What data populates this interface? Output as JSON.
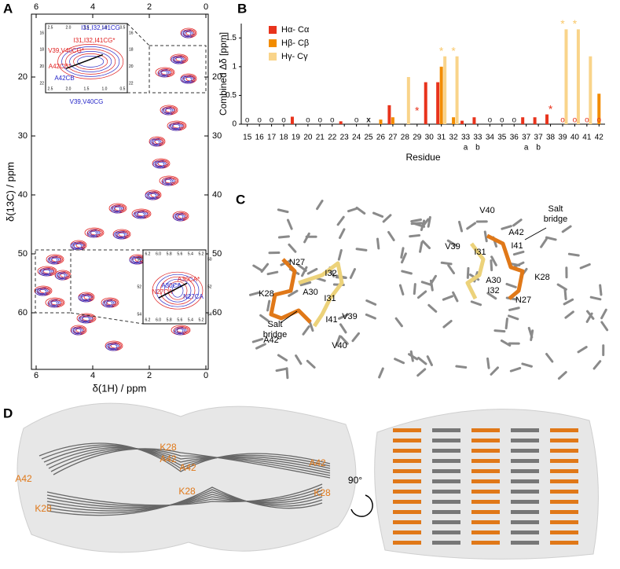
{
  "panels": {
    "A": {
      "letter": "A",
      "x_label": "δ(1H) / ppm",
      "y_label": "δ(13C) / ppm",
      "xticks": [
        6,
        4,
        2,
        0
      ],
      "yticks": [
        20,
        30,
        40,
        50,
        60
      ],
      "inset_top": {
        "xticks": [
          "2.5",
          "2.0",
          "1.5",
          "1.0",
          "0.5"
        ],
        "yticks": [
          "16",
          "18",
          "20",
          "22"
        ],
        "labels": [
          {
            "text": "I31,I32,I41CG",
            "color": "#2323c8"
          },
          {
            "text": "I31,I32,I41CG*",
            "color": "#e02020"
          },
          {
            "text": "V39,V40CG*",
            "color": "#e02020"
          },
          {
            "text": "A42CB*",
            "color": "#e02020"
          },
          {
            "text": "A42CB",
            "color": "#2323c8"
          },
          {
            "text": "V39,V40CG",
            "color": "#2323c8"
          }
        ]
      },
      "inset_bottom": {
        "xticks": [
          "6.2",
          "6.0",
          "5.8",
          "5.6",
          "5.4",
          "5.2"
        ],
        "yticks": [
          "50",
          "52",
          "54"
        ],
        "labels": [
          {
            "text": "A30CA*",
            "color": "#e02020"
          },
          {
            "text": "A30CA",
            "color": "#2323c8"
          },
          {
            "text": "N27CA*",
            "color": "#e02020"
          },
          {
            "text": "N27CA",
            "color": "#2323c8"
          }
        ]
      }
    },
    "B": {
      "letter": "B",
      "chart_data": {
        "type": "bar",
        "y_label": "Combined Δδ [ppm]",
        "x_label": "Residue",
        "categories": [
          "15",
          "16",
          "17",
          "18",
          "19",
          "20",
          "21",
          "22",
          "23",
          "24",
          "25",
          "26",
          "27",
          "28",
          "29",
          "30",
          "31",
          "32",
          "33",
          "33",
          "34",
          "35",
          "36",
          "37",
          "37",
          "38",
          "39",
          "40",
          "41",
          "42"
        ],
        "sublabels": [
          null,
          null,
          null,
          null,
          null,
          null,
          null,
          null,
          null,
          null,
          null,
          null,
          null,
          null,
          null,
          null,
          null,
          null,
          "a",
          "b",
          null,
          null,
          null,
          "a",
          "b",
          null,
          null,
          null,
          null,
          null
        ],
        "ylim": [
          0,
          1.75
        ],
        "yticks": [
          0,
          0.5,
          1,
          1.5
        ],
        "legend": "top-left",
        "series": [
          {
            "name": "Hα- Cα",
            "color": "#e8331c",
            "values": [
              null,
              null,
              null,
              null,
              0.13,
              null,
              null,
              null,
              0.05,
              null,
              null,
              null,
              0.33,
              null,
              null,
              0.73,
              0.73,
              null,
              0.06,
              0.12,
              null,
              null,
              null,
              0.12,
              0.12,
              0.17,
              null,
              null,
              null,
              null
            ]
          },
          {
            "name": "Hβ- Cβ",
            "color": "#f28c00",
            "values": [
              null,
              null,
              null,
              null,
              null,
              null,
              null,
              null,
              null,
              null,
              null,
              0.08,
              0.12,
              null,
              null,
              null,
              1.0,
              0.12,
              null,
              null,
              null,
              null,
              null,
              null,
              null,
              null,
              null,
              null,
              null,
              0.53
            ]
          },
          {
            "name": "Hγ- Cγ",
            "color": "#f9d48a",
            "values": [
              null,
              null,
              null,
              null,
              null,
              null,
              null,
              null,
              null,
              null,
              null,
              null,
              null,
              0.82,
              null,
              null,
              1.18,
              1.18,
              null,
              null,
              null,
              null,
              null,
              null,
              null,
              null,
              1.65,
              1.65,
              1.18,
              null
            ]
          }
        ],
        "annotations": [
          {
            "index": 0,
            "symbol": "o",
            "color": "#222222"
          },
          {
            "index": 1,
            "symbol": "o",
            "color": "#222222"
          },
          {
            "index": 2,
            "symbol": "o",
            "color": "#222222"
          },
          {
            "index": 3,
            "symbol": "o",
            "color": "#222222"
          },
          {
            "index": 5,
            "symbol": "o",
            "color": "#222222"
          },
          {
            "index": 6,
            "symbol": "o",
            "color": "#222222"
          },
          {
            "index": 7,
            "symbol": "o",
            "color": "#222222"
          },
          {
            "index": 9,
            "symbol": "o",
            "color": "#222222"
          },
          {
            "index": 10,
            "symbol": "x",
            "color": "#222222"
          },
          {
            "index": 20,
            "symbol": "o",
            "color": "#222222"
          },
          {
            "index": 21,
            "symbol": "o",
            "color": "#222222"
          },
          {
            "index": 22,
            "symbol": "o",
            "color": "#222222"
          },
          {
            "index": 26,
            "symbol": "o",
            "color": "#e8331c"
          },
          {
            "index": 27,
            "symbol": "o",
            "color": "#e8331c"
          },
          {
            "index": 28,
            "symbol": "o",
            "color": "#e8331c"
          },
          {
            "index": 29,
            "symbol": "o",
            "color": "#e8331c"
          },
          {
            "index": 14,
            "symbol": "*",
            "color": "#e8331c"
          },
          {
            "index": 25,
            "symbol": "*",
            "color": "#e8331c"
          },
          {
            "index": 16,
            "symbol": "*",
            "color": "#f9c86a"
          },
          {
            "index": 17,
            "symbol": "*",
            "color": "#f9c86a"
          },
          {
            "index": 26,
            "symbol": "*",
            "color": "#f9c86a"
          },
          {
            "index": 27,
            "symbol": "*",
            "color": "#f9c86a"
          }
        ]
      }
    },
    "C": {
      "letter": "C",
      "labels": [
        "N27",
        "A30",
        "I32",
        "K28",
        "I31",
        "I41",
        "V39",
        "A42",
        "V40",
        "V40",
        "A42",
        "V39",
        "I31",
        "I41",
        "K28",
        "A30",
        "I32",
        "N27"
      ],
      "salt_bridge": [
        "Salt",
        "bridge"
      ]
    },
    "D": {
      "letter": "D",
      "labels": [
        "K28",
        "A42",
        "A42",
        "K28",
        "A42",
        "K28",
        "A42",
        "K28"
      ],
      "rotation": "90°"
    }
  }
}
